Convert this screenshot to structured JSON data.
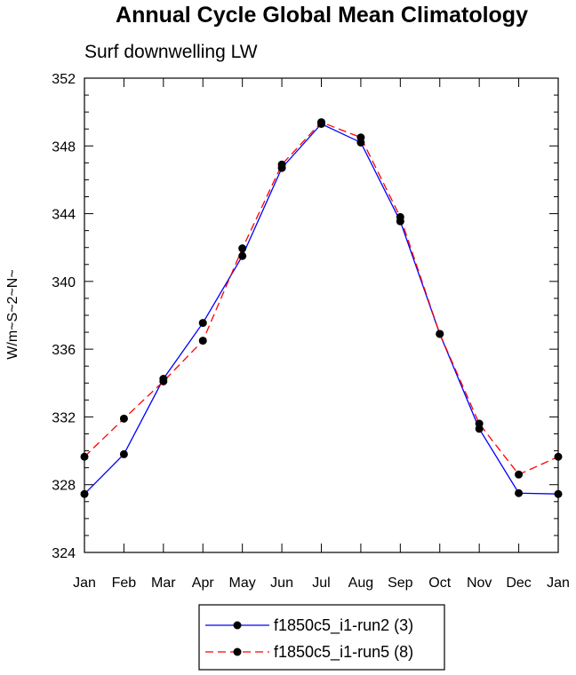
{
  "chart_data": {
    "type": "line",
    "title": "Annual Cycle Global Mean Climatology",
    "subtitle": "Surf downwelling LW",
    "ylabel": "W/m~S~2~N~",
    "xlabel": "",
    "categories": [
      "Jan",
      "Feb",
      "Mar",
      "Apr",
      "May",
      "Jun",
      "Jul",
      "Aug",
      "Sep",
      "Oct",
      "Nov",
      "Dec",
      "Jan"
    ],
    "ylim": [
      324,
      352
    ],
    "yticks": [
      324,
      328,
      332,
      336,
      340,
      344,
      348,
      352
    ],
    "grid": false,
    "legend_position": "bottom-center",
    "series": [
      {
        "name": "f1850c5_i1-run2 (3)",
        "color": "#0000ff",
        "dash": "solid",
        "values": [
          327.45,
          329.8,
          334.25,
          337.55,
          341.5,
          346.7,
          349.3,
          348.2,
          343.55,
          336.9,
          331.3,
          327.5,
          327.45
        ]
      },
      {
        "name": "f1850c5_i1-run5 (8)",
        "color": "#ff0000",
        "dash": "dashed",
        "values": [
          329.65,
          331.9,
          334.1,
          336.5,
          341.95,
          346.9,
          349.4,
          348.5,
          343.8,
          336.9,
          331.6,
          328.6,
          329.65
        ]
      }
    ]
  }
}
